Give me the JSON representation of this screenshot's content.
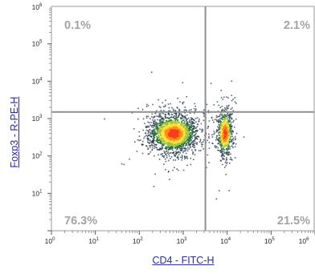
{
  "chart_data": {
    "type": "scatter",
    "subtype": "flow-cytometry density dot plot",
    "xlabel": "CD4 - FITC-H",
    "ylabel": "Foxp3 - R-PE-H",
    "x_scale": "log",
    "y_scale": "log",
    "xlim": [
      1,
      1000000
    ],
    "ylim": [
      1,
      1000000
    ],
    "x_ticks": [
      {
        "value": 1,
        "label": "10",
        "exp": "0"
      },
      {
        "value": 10,
        "label": "10",
        "exp": "1"
      },
      {
        "value": 100,
        "label": "10",
        "exp": "2"
      },
      {
        "value": 1000,
        "label": "10",
        "exp": "3"
      },
      {
        "value": 10000,
        "label": "10",
        "exp": "4"
      },
      {
        "value": 100000,
        "label": "10",
        "exp": "5"
      },
      {
        "value": 1000000,
        "label": "10",
        "exp": "6"
      }
    ],
    "y_ticks": [
      {
        "value": 10,
        "label": "10",
        "exp": "1"
      },
      {
        "value": 100,
        "label": "10",
        "exp": "2"
      },
      {
        "value": 1000,
        "label": "10",
        "exp": "3"
      },
      {
        "value": 10000,
        "label": "10",
        "exp": "4"
      },
      {
        "value": 100000,
        "label": "10",
        "exp": "5"
      },
      {
        "value": 1000000,
        "label": "10",
        "exp": "6"
      }
    ],
    "gates": {
      "x": 3200,
      "y": 1500
    },
    "quadrants": [
      {
        "position": "top-left",
        "label": "0.1%",
        "value": 0.1
      },
      {
        "position": "top-right",
        "label": "2.1%",
        "value": 2.1
      },
      {
        "position": "bottom-left",
        "label": "76.3%",
        "value": 76.3
      },
      {
        "position": "bottom-right",
        "label": "21.5%",
        "value": 21.5
      }
    ],
    "populations": [
      {
        "center_x": 600,
        "center_y": 400,
        "sigma_logx": 0.28,
        "sigma_logy": 0.26,
        "weight": 0.76
      },
      {
        "center_x": 9000,
        "center_y": 400,
        "sigma_logx": 0.09,
        "sigma_logy": 0.32,
        "weight": 0.24
      }
    ],
    "colors": {
      "frame": "#999999",
      "gate": "#8f8f8f",
      "quadrant_text": "#a3a3a3",
      "axis_label": "#2a2aa0",
      "density": [
        "#1f3348",
        "#2a6e3f",
        "#9fc42c",
        "#ffe23a",
        "#ff8d1a",
        "#ff3b1f"
      ]
    }
  }
}
